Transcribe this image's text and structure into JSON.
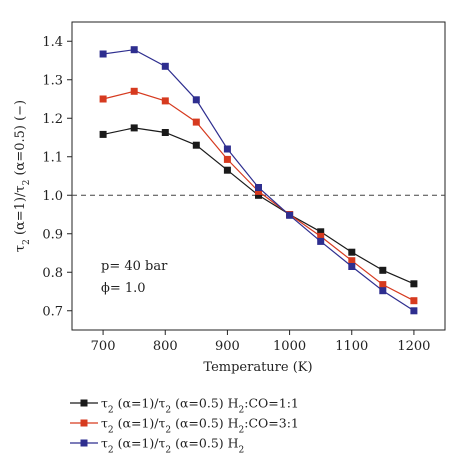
{
  "chart_data": {
    "type": "line",
    "xlabel": "Temperature (K)",
    "ylabel_parts": [
      "τ",
      "2",
      " (α=1)/τ",
      "2",
      " (α=0.5) (−)"
    ],
    "xlim": [
      650,
      1250
    ],
    "ylim": [
      0.65,
      1.45
    ],
    "xticks": [
      700,
      800,
      900,
      1000,
      1100,
      1200
    ],
    "yticks": [
      0.7,
      0.8,
      0.9,
      1.0,
      1.1,
      1.2,
      1.3,
      1.4
    ],
    "reference_line": 1.0,
    "grid": false,
    "legend_position": "bottom",
    "annotations": [
      "p= 40 bar",
      "ϕ= 1.0"
    ],
    "x": [
      700,
      750,
      800,
      850,
      900,
      950,
      1000,
      1050,
      1100,
      1150,
      1200
    ],
    "series": [
      {
        "name_parts": [
          "τ",
          "2",
          " (α=1)/τ",
          "2",
          " (α=0.5) H",
          "2",
          ":CO=1:1"
        ],
        "color": "#1a1a1a",
        "values": [
          1.158,
          1.175,
          1.163,
          1.13,
          1.065,
          1.0,
          0.95,
          0.905,
          0.852,
          0.805,
          0.77
        ]
      },
      {
        "name_parts": [
          "τ",
          "2",
          " (α=1)/τ",
          "2",
          " (α=0.5) H",
          "2",
          ":CO=3:1"
        ],
        "color": "#d63a1f",
        "values": [
          1.25,
          1.27,
          1.245,
          1.19,
          1.093,
          1.01,
          0.95,
          0.893,
          0.83,
          0.768,
          0.726
        ]
      },
      {
        "name_parts": [
          "τ",
          "2",
          " (α=1)/τ",
          "2",
          " (α=0.5) H",
          "2"
        ],
        "color": "#2e2e8f",
        "values": [
          1.367,
          1.378,
          1.335,
          1.248,
          1.12,
          1.02,
          0.948,
          0.88,
          0.815,
          0.752,
          0.7
        ]
      }
    ]
  }
}
